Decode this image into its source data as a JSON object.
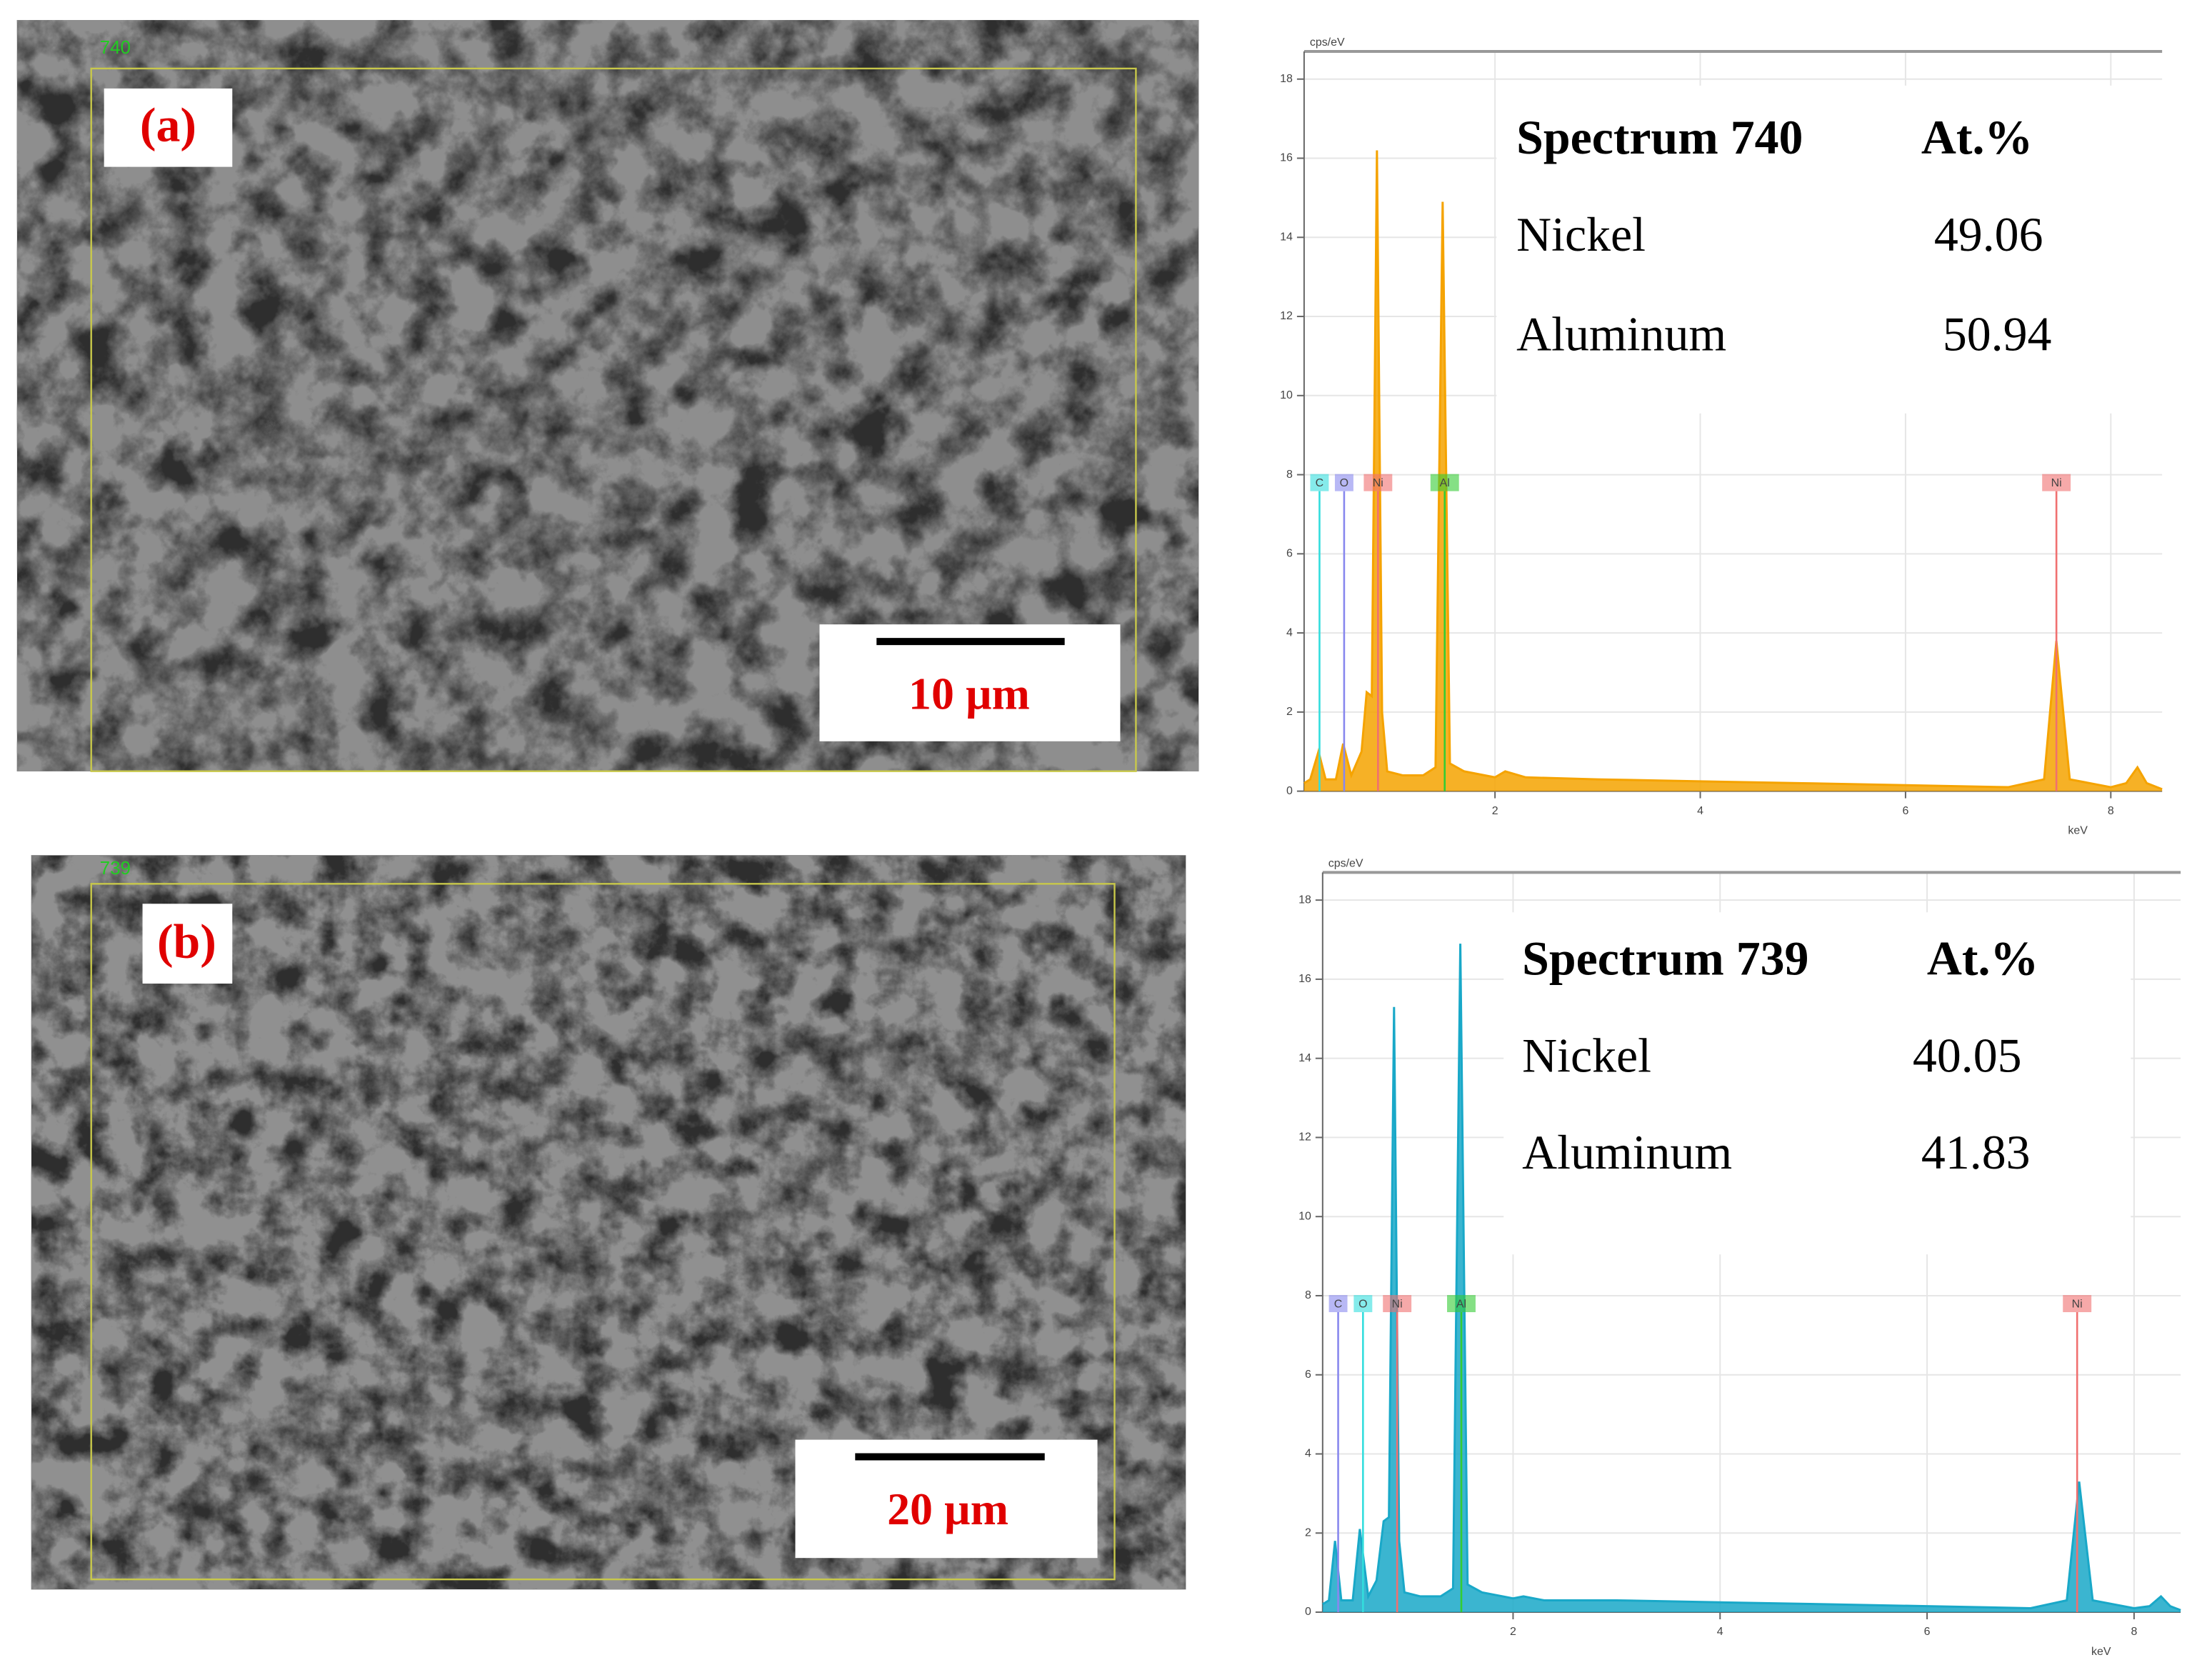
{
  "images": [
    {
      "label": "(a)",
      "frame": "740",
      "scale_bar": "10 µm"
    },
    {
      "label": "(b)",
      "frame": "739",
      "scale_bar": "20 µm"
    }
  ],
  "chart_data": [
    {
      "type": "line",
      "x_label": "keV",
      "y_label": "cps/eV",
      "color": "#f5a300",
      "grid": true,
      "xlim": [
        0.14,
        8.5
      ],
      "ylim": [
        0,
        18.7
      ],
      "xticks": [
        2,
        4,
        6,
        8
      ],
      "yticks": [
        0,
        2,
        4,
        6,
        8,
        10,
        12,
        14,
        16,
        18
      ],
      "x": [
        0.14,
        0.2,
        0.28,
        0.35,
        0.45,
        0.52,
        0.6,
        0.7,
        0.75,
        0.8,
        0.85,
        0.9,
        0.95,
        1.1,
        1.3,
        1.42,
        1.49,
        1.56,
        1.7,
        2.0,
        2.1,
        2.3,
        3.0,
        4.0,
        5.0,
        6.0,
        7.0,
        7.35,
        7.47,
        7.6,
        8.0,
        8.15,
        8.26,
        8.35,
        8.5
      ],
      "values": [
        0.2,
        0.3,
        1.0,
        0.3,
        0.3,
        1.2,
        0.4,
        1.0,
        2.5,
        2.4,
        16.2,
        2.0,
        0.5,
        0.4,
        0.4,
        0.6,
        14.9,
        0.7,
        0.5,
        0.35,
        0.5,
        0.35,
        0.3,
        0.25,
        0.2,
        0.15,
        0.1,
        0.3,
        3.8,
        0.3,
        0.1,
        0.2,
        0.6,
        0.2,
        0.05
      ],
      "markers": [
        {
          "label": "C",
          "x": 0.29,
          "color": "#33dddd"
        },
        {
          "label": "O",
          "x": 0.53,
          "color": "#8888ee"
        },
        {
          "label": "Ni",
          "x": 0.86,
          "color": "#f07070"
        },
        {
          "label": "Al",
          "x": 1.51,
          "color": "#33cc33"
        },
        {
          "label": "Ni",
          "x": 7.47,
          "color": "#f07070"
        }
      ],
      "table": {
        "header": [
          "Spectrum 740",
          "At.%"
        ],
        "rows": [
          [
            "Nickel",
            49.06
          ],
          [
            "Aluminum",
            50.94
          ]
        ]
      }
    },
    {
      "type": "line",
      "x_label": "keV",
      "y_label": "cps/eV",
      "color": "#19a8c8",
      "grid": true,
      "xlim": [
        0.16,
        8.45
      ],
      "ylim": [
        0,
        18.7
      ],
      "xticks": [
        2,
        4,
        6,
        8
      ],
      "yticks": [
        0,
        2,
        4,
        6,
        8,
        10,
        12,
        14,
        16,
        18
      ],
      "x": [
        0.16,
        0.22,
        0.28,
        0.34,
        0.45,
        0.52,
        0.6,
        0.68,
        0.75,
        0.8,
        0.85,
        0.9,
        0.95,
        1.1,
        1.3,
        1.42,
        1.49,
        1.56,
        1.7,
        2.0,
        2.1,
        2.3,
        3.0,
        4.0,
        5.0,
        6.0,
        7.0,
        7.35,
        7.47,
        7.6,
        8.0,
        8.15,
        8.26,
        8.35,
        8.45
      ],
      "values": [
        0.2,
        0.3,
        1.8,
        0.3,
        0.3,
        2.1,
        0.4,
        0.8,
        2.3,
        2.4,
        15.3,
        1.8,
        0.5,
        0.4,
        0.4,
        0.6,
        16.9,
        0.7,
        0.5,
        0.35,
        0.4,
        0.3,
        0.3,
        0.25,
        0.2,
        0.15,
        0.1,
        0.3,
        3.3,
        0.3,
        0.1,
        0.15,
        0.4,
        0.15,
        0.05
      ],
      "markers": [
        {
          "label": "C",
          "x": 0.31,
          "color": "#8888ee"
        },
        {
          "label": "O",
          "x": 0.55,
          "color": "#33dddd"
        },
        {
          "label": "Ni",
          "x": 0.88,
          "color": "#f07070"
        },
        {
          "label": "Al",
          "x": 1.5,
          "color": "#33cc33"
        },
        {
          "label": "Ni",
          "x": 7.45,
          "color": "#f07070"
        }
      ],
      "table": {
        "header": [
          "Spectrum 739",
          "At.%"
        ],
        "rows": [
          [
            "Nickel",
            40.05
          ],
          [
            "Aluminum",
            41.83
          ]
        ]
      }
    }
  ]
}
